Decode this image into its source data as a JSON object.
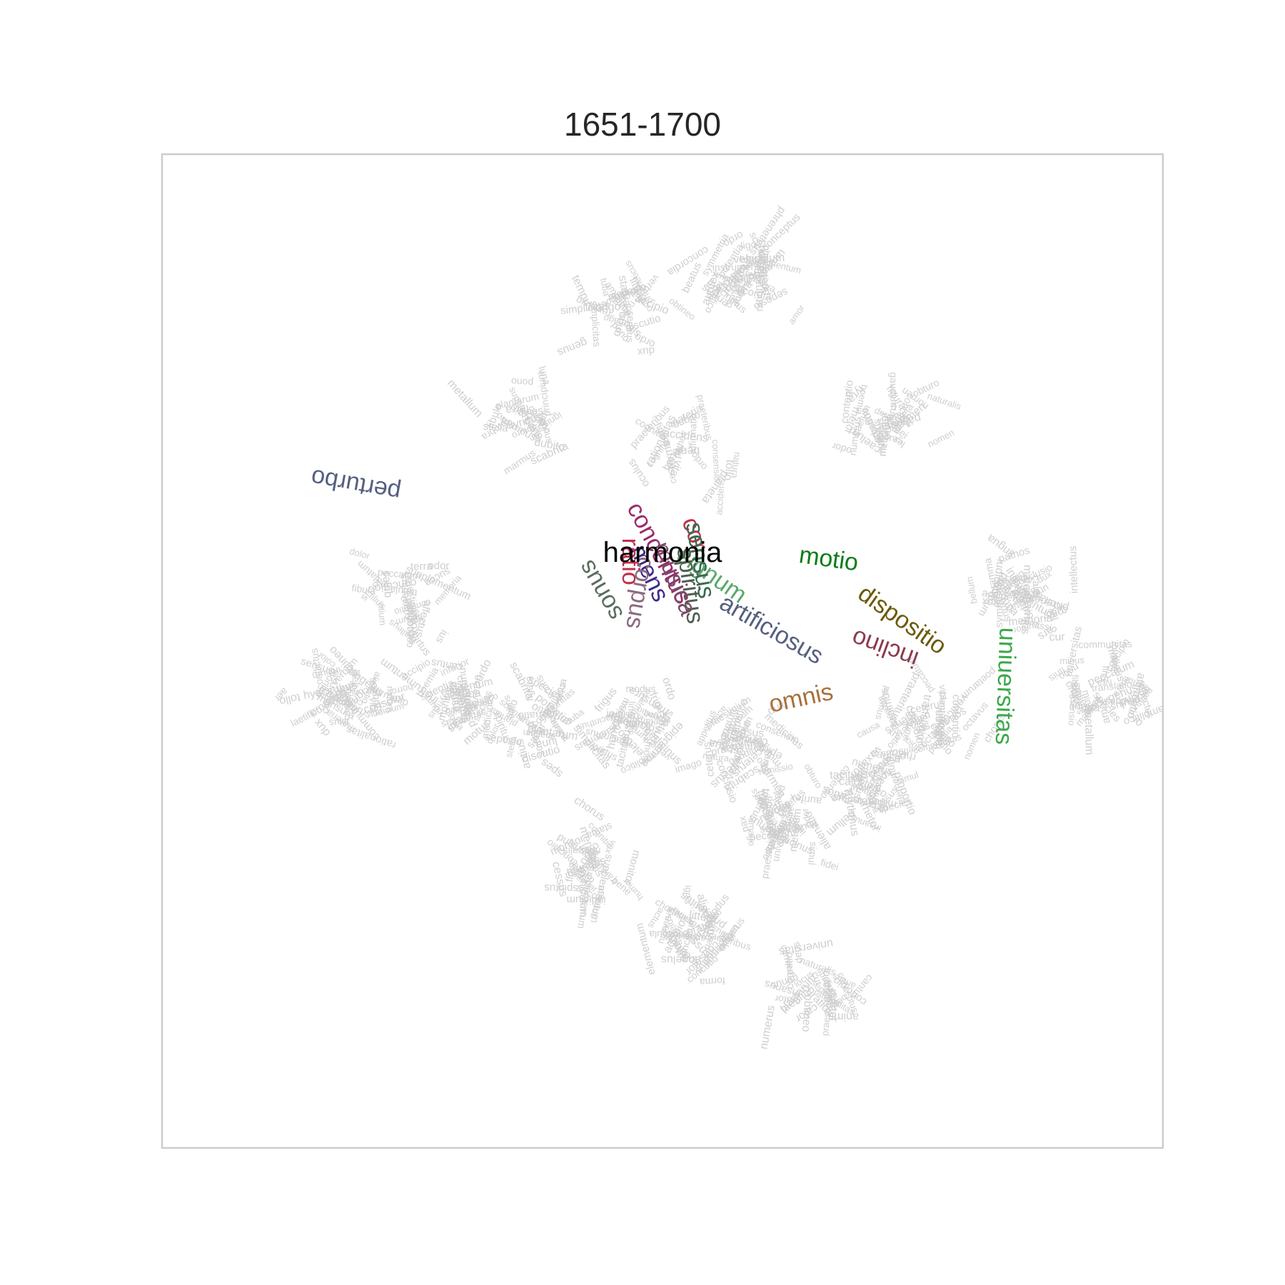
{
  "chart_data": {
    "type": "scatter",
    "title": "1651-1700",
    "xlabel": "",
    "ylabel": "",
    "xlim": [
      0,
      100
    ],
    "ylim": [
      0,
      100
    ],
    "grid": false,
    "axes_ticks": false,
    "center_word": {
      "label": "harmonia",
      "x": 50.0,
      "y": 60.0,
      "color": "#000000"
    },
    "highlighted": [
      {
        "label": "perturbo",
        "x": 19.5,
        "y": 67.5,
        "rot": 190,
        "color": "#55607f"
      },
      {
        "label": "motio",
        "x": 66.5,
        "y": 58.5,
        "rot": 8,
        "color": "#0b7d16"
      },
      {
        "label": "dispositio",
        "x": 73.5,
        "y": 52.5,
        "rot": 35,
        "color": "#6b5a0c"
      },
      {
        "label": "inclino",
        "x": 72.5,
        "y": 51.0,
        "rot": 200,
        "color": "#8c3b4d"
      },
      {
        "label": "uniuersitas",
        "x": 83.5,
        "y": 46.5,
        "rot": 92,
        "color": "#3aa84a"
      },
      {
        "label": "artificiosus",
        "x": 60.5,
        "y": 51.5,
        "rot": 30,
        "color": "#55607f"
      },
      {
        "label": "omnis",
        "x": 64.0,
        "y": 44.5,
        "rot": -12,
        "color": "#a8703a"
      },
      {
        "label": "signum",
        "x": 54.5,
        "y": 57.0,
        "rot": 35,
        "color": "#5aa86a"
      },
      {
        "label": "spiritus",
        "x": 52.0,
        "y": 56.5,
        "rot": 82,
        "color": "#4f5f4f"
      },
      {
        "label": "concentus",
        "x": 49.0,
        "y": 59.5,
        "rot": 62,
        "color": "#9c2a6a"
      },
      {
        "label": "mens",
        "x": 48.0,
        "y": 57.5,
        "rot": 65,
        "color": "#3d2a8c"
      },
      {
        "label": "sonus",
        "x": 44.5,
        "y": 56.5,
        "rot": 240,
        "color": "#5a6e60"
      },
      {
        "label": "musica",
        "x": 50.5,
        "y": 57.0,
        "rot": 68,
        "color": "#7a4a6a"
      },
      {
        "label": "corpus",
        "x": 47.0,
        "y": 56.0,
        "rot": 100,
        "color": "#8a6a80"
      },
      {
        "label": "ratio",
        "x": 46.0,
        "y": 59.0,
        "rot": 90,
        "color": "#c0304a"
      },
      {
        "label": "cor",
        "x": 52.5,
        "y": 61.5,
        "rot": 70,
        "color": "#c0304a"
      },
      {
        "label": "sensus",
        "x": 53.0,
        "y": 59.0,
        "rot": 80,
        "color": "#3a6a50"
      }
    ],
    "background_words": [
      "sitio",
      "medicinus",
      "discutio",
      "tollo",
      "monitor",
      "concutio",
      "insanus",
      "phreneticus",
      "concipio",
      "remissio",
      "conflictus",
      "contentio",
      "alienatio",
      "vexatio",
      "laetifico",
      "conclusio",
      "praestigium",
      "angelus",
      "seposio",
      "peccatum",
      "electio",
      "psalmus",
      "fidei",
      "filius",
      "obtineo",
      "sono",
      "tuba",
      "ligo",
      "obturo",
      "spiritus",
      "succa",
      "curatio",
      "aurifex",
      "malleus",
      "metallum",
      "marmus",
      "sartor",
      "hyacinthus",
      "scabrita",
      "palatum",
      "vehiculum",
      "vocabula",
      "fibula",
      "lyra",
      "chorus",
      "statua",
      "origo",
      "instrumentum",
      "universitas",
      "plantarum",
      "inferus",
      "concordia",
      "rationalitas",
      "communitas",
      "amplitico",
      "simplicitas",
      "consensio",
      "cognitio",
      "tabula",
      "translatio",
      "sensus",
      "epigramma",
      "poetarum",
      "rhythmus",
      "minus",
      "octavus",
      "beatus",
      "cur",
      "bene",
      "antius",
      "simul",
      "numerus",
      "boemia",
      "dux",
      "io",
      "scientia",
      "iudicium",
      "praeteritus",
      "tacitus",
      "pulsus",
      "cesso",
      "affirmatio",
      "supplementum",
      "forma",
      "conceptus",
      "affectus",
      "initium",
      "praeteribus",
      "cognitio",
      "ceterus",
      "inferior",
      "consolor",
      "accipio",
      "pono",
      "lyricus",
      "naturalis",
      "dubito",
      "ordo",
      "intellectus",
      "accidens",
      "horror",
      "pathos",
      "appetitus",
      "cessus",
      "oculus",
      "odor",
      "gustus",
      "amor",
      "timor",
      "spes",
      "gaudium",
      "dolor",
      "memoria",
      "imago",
      "notio",
      "verbum",
      "vox",
      "littera",
      "cantus",
      "carmen",
      "rhetor",
      "orator",
      "lingua",
      "nomen",
      "figura",
      "modus",
      "numerus",
      "mensura",
      "proportio",
      "symmetria",
      "ordo",
      "species",
      "genus",
      "actus",
      "potentia",
      "materia",
      "causa",
      "effectus",
      "finis",
      "principium",
      "elementum",
      "mundus",
      "caelum",
      "terra",
      "aqua",
      "ignis",
      "aer",
      "sol",
      "luna",
      "stella",
      "planeta",
      "tempus",
      "locus",
      "spatium",
      "motus",
      "quies",
      "lux",
      "umbra",
      "color",
      "calor",
      "frigus",
      "humor",
      "siccitas",
      "vita",
      "mors",
      "anima",
      "deus",
      "natura",
      "ars",
      "virtus",
      "vitium",
      "lex",
      "ius",
      "pax",
      "bellum"
    ]
  }
}
